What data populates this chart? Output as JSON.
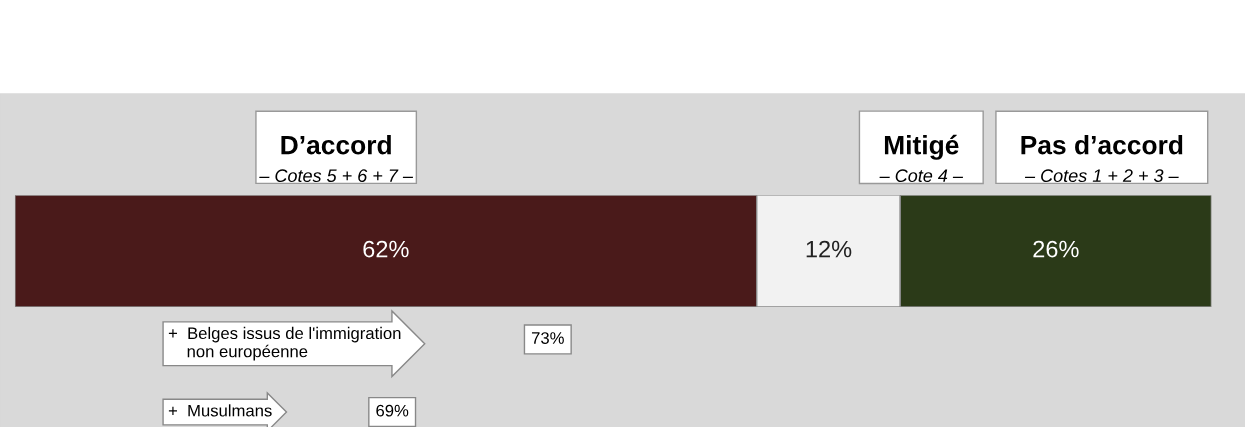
{
  "chart_data": {
    "type": "bar",
    "orientation": "horizontal",
    "stacked": true,
    "categories": [
      null
    ],
    "series": [
      {
        "name": "D’accord",
        "color": "#4a1a1a",
        "values": [
          62
        ],
        "value_labels": [
          "62%"
        ]
      },
      {
        "name": "Mitigé",
        "color": "#f2f2f2",
        "values": [
          12
        ],
        "value_labels": [
          "12%"
        ]
      },
      {
        "name": "Pas d’accord",
        "color": "#2b3a18",
        "values": [
          26
        ],
        "value_labels": [
          "26%"
        ]
      }
    ],
    "xlim": [
      0,
      100
    ],
    "grid": false,
    "legend": false,
    "annotations": [
      "– Cotes 5 + 6 + 7 –",
      "– Cote 4 –",
      "– Cotes 1 + 2 + 3 –",
      "+  Belges issus de l'immigration\n    non européenne",
      "73%",
      "+  Musulmans",
      "69%"
    ]
  }
}
